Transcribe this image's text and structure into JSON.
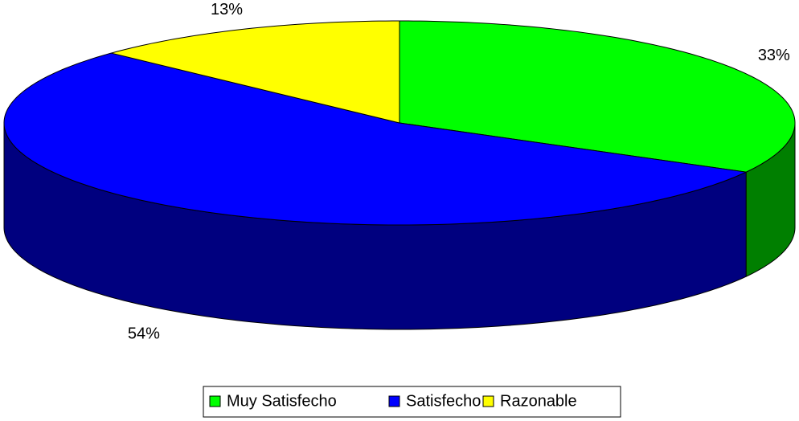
{
  "chart_data": {
    "type": "pie3d",
    "categories": [
      "Muy Satisfecho",
      "Satisfecho",
      "Razonable"
    ],
    "values": [
      33,
      54,
      13
    ],
    "value_labels": [
      "33%",
      "54%",
      "13%"
    ],
    "colors": [
      "#00ff00",
      "#0000ff",
      "#ffff00"
    ],
    "legend": "bottom"
  }
}
